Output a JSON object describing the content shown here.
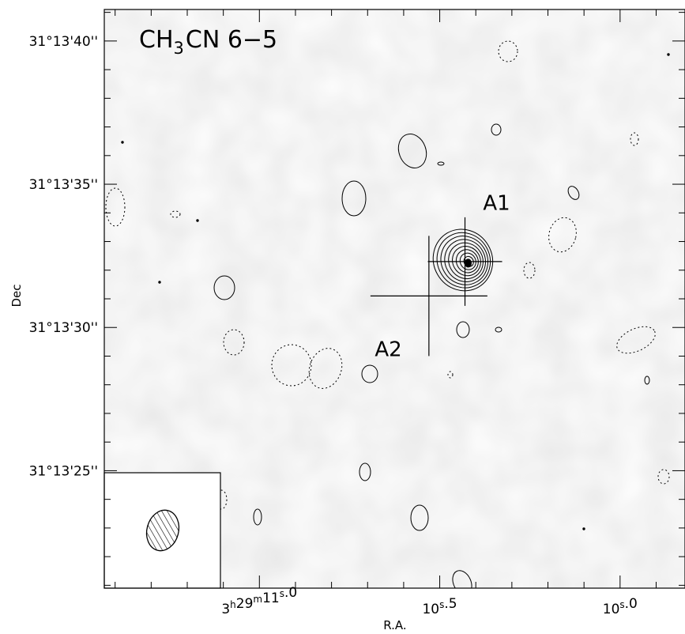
{
  "chart_data": {
    "type": "heatmap",
    "title": "CH3CN 6−5",
    "title_parts": {
      "pre": "CH",
      "sub": "3",
      "post": "CN 6−5"
    },
    "xlabel": "R.A.",
    "ylabel": "Dec",
    "x_ticks": [
      {
        "value_s": 11.0,
        "label": "3h29m11.0s",
        "parts": {
          "a": "3",
          "b": "h",
          "c": "29",
          "d": "m",
          "e": "11",
          "f": "s",
          "g": ".0"
        }
      },
      {
        "value_s": 10.5,
        "label": "10.5s",
        "parts": {
          "a": "",
          "b": "",
          "c": "",
          "d": "",
          "e": "10",
          "f": "s",
          "g": ".5"
        }
      },
      {
        "value_s": 10.0,
        "label": "10.0s",
        "parts": {
          "a": "",
          "b": "",
          "c": "",
          "d": "",
          "e": "10",
          "f": "s",
          "g": ".0"
        }
      }
    ],
    "y_ticks": [
      {
        "value_arcsec": 40,
        "label": "31°13'40''"
      },
      {
        "value_arcsec": 35,
        "label": "31°13'35''"
      },
      {
        "value_arcsec": 30,
        "label": "31°13'30''"
      },
      {
        "value_arcsec": 25,
        "label": "31°13'25''"
      }
    ],
    "xlim_s": [
      11.43,
      9.82
    ],
    "ylim_arcsec": [
      20.9,
      41.1
    ],
    "sources": [
      {
        "name": "A1",
        "ra_s": 10.43,
        "dec_arcsec": 32.3,
        "label_ra_s": 10.38,
        "label_dec_arcsec": 34.1
      },
      {
        "name": "A2",
        "ra_s": 10.53,
        "dec_arcsec": 31.1,
        "label_ra_s": 10.68,
        "label_dec_arcsec": 29.0
      }
    ],
    "emission_peak": {
      "ra_s": 10.43,
      "dec_arcsec": 32.3,
      "n_contours": 9
    },
    "beam": {
      "shape": "ellipse",
      "position": "bottom-left"
    },
    "grid": false,
    "legend": "none",
    "contours": "solid = positive, dotted = negative"
  }
}
